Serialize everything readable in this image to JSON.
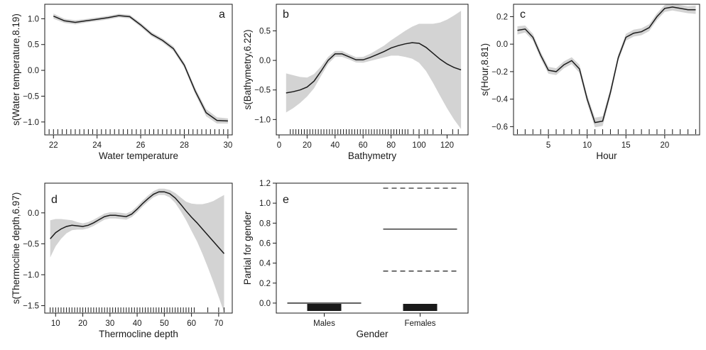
{
  "chart_data": [
    {
      "panel": "a",
      "type": "line",
      "title": "",
      "xlabel": "Water temperature",
      "ylabel": "s(Water temperature,8.19)",
      "xlim": [
        21.6,
        30.2
      ],
      "ylim": [
        -1.25,
        1.28
      ],
      "xticks": [
        22,
        24,
        26,
        28,
        30
      ],
      "yticks": [
        -1.0,
        -0.5,
        0.0,
        0.5,
        1.0
      ],
      "xtick_labels": [
        "22",
        "24",
        "26",
        "28",
        "30"
      ],
      "ytick_labels": [
        "−1.0",
        "−0.5",
        "0.0",
        "0.5",
        "1.0"
      ],
      "x": [
        22.0,
        22.5,
        23.0,
        23.5,
        24.0,
        24.5,
        25.0,
        25.5,
        26.0,
        26.5,
        27.0,
        27.5,
        28.0,
        28.5,
        29.0,
        29.5,
        30.0
      ],
      "y": [
        1.05,
        0.96,
        0.93,
        0.96,
        0.99,
        1.02,
        1.06,
        1.04,
        0.88,
        0.7,
        0.58,
        0.42,
        0.1,
        -0.4,
        -0.82,
        -0.97,
        -0.98
      ],
      "se": [
        0.05,
        0.04,
        0.04,
        0.035,
        0.035,
        0.035,
        0.035,
        0.035,
        0.04,
        0.04,
        0.04,
        0.045,
        0.05,
        0.06,
        0.07,
        0.06,
        0.05
      ],
      "rug": [
        21.8,
        22.0,
        22.2,
        22.4,
        22.6,
        22.8,
        23.0,
        23.2,
        23.4,
        23.6,
        23.8,
        24.0,
        24.2,
        24.4,
        24.6,
        24.8,
        25.0,
        25.2,
        25.4,
        25.6,
        25.8,
        26.0,
        26.2,
        26.4,
        26.6,
        26.8,
        27.0,
        27.2,
        27.4,
        27.6,
        27.8,
        28.0,
        28.2,
        28.4,
        28.6,
        28.8,
        29.0,
        29.2,
        29.4,
        29.6,
        29.8,
        30.0
      ]
    },
    {
      "panel": "b",
      "type": "line",
      "title": "",
      "xlabel": "Bathymetry",
      "ylabel": "s(Bathymetry,6.22)",
      "xlim": [
        -2,
        135
      ],
      "ylim": [
        -1.26,
        0.95
      ],
      "xticks": [
        0,
        20,
        40,
        60,
        80,
        100,
        120
      ],
      "yticks": [
        -1.0,
        -0.5,
        0.0,
        0.5
      ],
      "xtick_labels": [
        "0",
        "20",
        "40",
        "60",
        "80",
        "100",
        "120"
      ],
      "ytick_labels": [
        "−1.0",
        "−0.5",
        "0.0",
        "0.5"
      ],
      "x": [
        5,
        10,
        15,
        20,
        25,
        30,
        35,
        40,
        45,
        50,
        55,
        60,
        65,
        70,
        75,
        80,
        85,
        90,
        95,
        100,
        105,
        110,
        115,
        120,
        125,
        130
      ],
      "y": [
        -0.55,
        -0.53,
        -0.5,
        -0.45,
        -0.35,
        -0.18,
        0.0,
        0.11,
        0.11,
        0.06,
        0.01,
        0.01,
        0.05,
        0.1,
        0.15,
        0.21,
        0.25,
        0.28,
        0.3,
        0.29,
        0.22,
        0.12,
        0.02,
        -0.06,
        -0.12,
        -0.16
      ],
      "se": [
        0.33,
        0.28,
        0.22,
        0.16,
        0.12,
        0.08,
        0.06,
        0.05,
        0.05,
        0.045,
        0.045,
        0.05,
        0.06,
        0.08,
        0.1,
        0.13,
        0.17,
        0.22,
        0.27,
        0.33,
        0.4,
        0.5,
        0.62,
        0.75,
        0.88,
        1.0
      ],
      "rug": [
        8,
        10,
        12,
        14,
        16,
        18,
        20,
        22,
        24,
        26,
        28,
        30,
        32,
        34,
        36,
        38,
        40,
        42,
        44,
        46,
        48,
        50,
        52,
        54,
        56,
        58,
        60,
        62,
        64,
        66,
        68,
        70,
        72,
        74,
        76,
        78,
        80,
        82,
        84,
        86,
        88,
        90,
        92,
        96,
        100,
        104,
        106,
        110,
        116,
        124,
        128
      ]
    },
    {
      "panel": "c",
      "type": "line",
      "title": "",
      "xlabel": "Hour",
      "ylabel": "s(Hour,8.81)",
      "xlim": [
        0.5,
        24.5
      ],
      "ylim": [
        -0.66,
        0.29
      ],
      "xticks": [
        5,
        10,
        15,
        20
      ],
      "yticks": [
        -0.6,
        -0.4,
        -0.2,
        0.0,
        0.2
      ],
      "xtick_labels": [
        "5",
        "10",
        "15",
        "20"
      ],
      "ytick_labels": [
        "−0.6",
        "−0.4",
        "−0.2",
        "0.0",
        "0.2"
      ],
      "x": [
        1,
        2,
        3,
        4,
        5,
        6,
        7,
        8,
        9,
        10,
        11,
        12,
        13,
        14,
        15,
        16,
        17,
        18,
        19,
        20,
        21,
        22,
        23,
        24
      ],
      "y": [
        0.1,
        0.11,
        0.05,
        -0.08,
        -0.19,
        -0.2,
        -0.15,
        -0.12,
        -0.18,
        -0.4,
        -0.57,
        -0.56,
        -0.35,
        -0.1,
        0.05,
        0.08,
        0.09,
        0.12,
        0.2,
        0.26,
        0.27,
        0.26,
        0.25,
        0.25
      ],
      "se": [
        0.03,
        0.025,
        0.025,
        0.025,
        0.025,
        0.025,
        0.025,
        0.025,
        0.03,
        0.03,
        0.035,
        0.035,
        0.03,
        0.025,
        0.025,
        0.025,
        0.025,
        0.025,
        0.025,
        0.025,
        0.025,
        0.025,
        0.025,
        0.03
      ],
      "rug": [
        1,
        2,
        3,
        4,
        5,
        6,
        7,
        8,
        9,
        10,
        11,
        12,
        13,
        14,
        15,
        16,
        17,
        18,
        19,
        20,
        21,
        22,
        23,
        24
      ]
    },
    {
      "panel": "d",
      "type": "line",
      "title": "",
      "xlabel": "Thermocline depth",
      "ylabel": "s(Thermocline depth,6.97)",
      "xlim": [
        6,
        75
      ],
      "ylim": [
        -1.62,
        0.48
      ],
      "xticks": [
        10,
        20,
        30,
        40,
        50,
        60,
        70
      ],
      "yticks": [
        -1.5,
        -1.0,
        -0.5,
        0.0
      ],
      "xtick_labels": [
        "10",
        "20",
        "30",
        "40",
        "50",
        "60",
        "70"
      ],
      "ytick_labels": [
        "−1.5",
        "−1.0",
        "−0.5",
        "0.0"
      ],
      "x": [
        8,
        10,
        12,
        14,
        16,
        18,
        20,
        22,
        24,
        26,
        28,
        30,
        32,
        34,
        36,
        38,
        40,
        42,
        44,
        46,
        48,
        50,
        52,
        54,
        56,
        58,
        60,
        62,
        64,
        66,
        68,
        70,
        72
      ],
      "y": [
        -0.42,
        -0.32,
        -0.26,
        -0.22,
        -0.2,
        -0.21,
        -0.22,
        -0.2,
        -0.16,
        -0.11,
        -0.06,
        -0.04,
        -0.04,
        -0.05,
        -0.06,
        -0.02,
        0.06,
        0.15,
        0.23,
        0.3,
        0.34,
        0.34,
        0.31,
        0.24,
        0.14,
        0.03,
        -0.07,
        -0.16,
        -0.26,
        -0.36,
        -0.46,
        -0.56,
        -0.66
      ],
      "se": [
        0.3,
        0.22,
        0.16,
        0.11,
        0.08,
        0.06,
        0.05,
        0.05,
        0.05,
        0.05,
        0.05,
        0.05,
        0.05,
        0.05,
        0.05,
        0.05,
        0.05,
        0.05,
        0.05,
        0.05,
        0.05,
        0.05,
        0.06,
        0.08,
        0.11,
        0.15,
        0.22,
        0.3,
        0.4,
        0.52,
        0.65,
        0.8,
        0.95
      ],
      "rug": [
        8,
        9,
        10,
        11,
        12,
        13,
        14,
        15,
        16,
        17,
        18,
        19,
        20,
        21,
        22,
        23,
        24,
        25,
        26,
        27,
        28,
        29,
        30,
        31,
        32,
        33,
        34,
        35,
        36,
        37,
        38,
        39,
        40,
        41,
        42,
        43,
        44,
        45,
        46,
        47,
        48,
        49,
        50,
        51,
        52,
        53,
        54,
        55,
        56,
        57,
        58,
        59,
        60,
        61,
        66,
        70,
        72
      ]
    },
    {
      "panel": "e",
      "type": "bar",
      "title": "",
      "xlabel": "Gender",
      "ylabel": "Partial for gender",
      "categories": [
        "Males",
        "Females"
      ],
      "ylim": [
        -0.1,
        1.2
      ],
      "yticks": [
        0.0,
        0.2,
        0.4,
        0.6,
        0.8,
        1.0,
        1.2
      ],
      "ytick_labels": [
        "0.0",
        "0.2",
        "0.4",
        "0.6",
        "0.8",
        "1.0",
        "1.2"
      ],
      "estimate": [
        0.0,
        0.74
      ],
      "upper_ci": [
        0.0,
        1.15
      ],
      "lower_ci": [
        0.0,
        0.32
      ]
    }
  ]
}
